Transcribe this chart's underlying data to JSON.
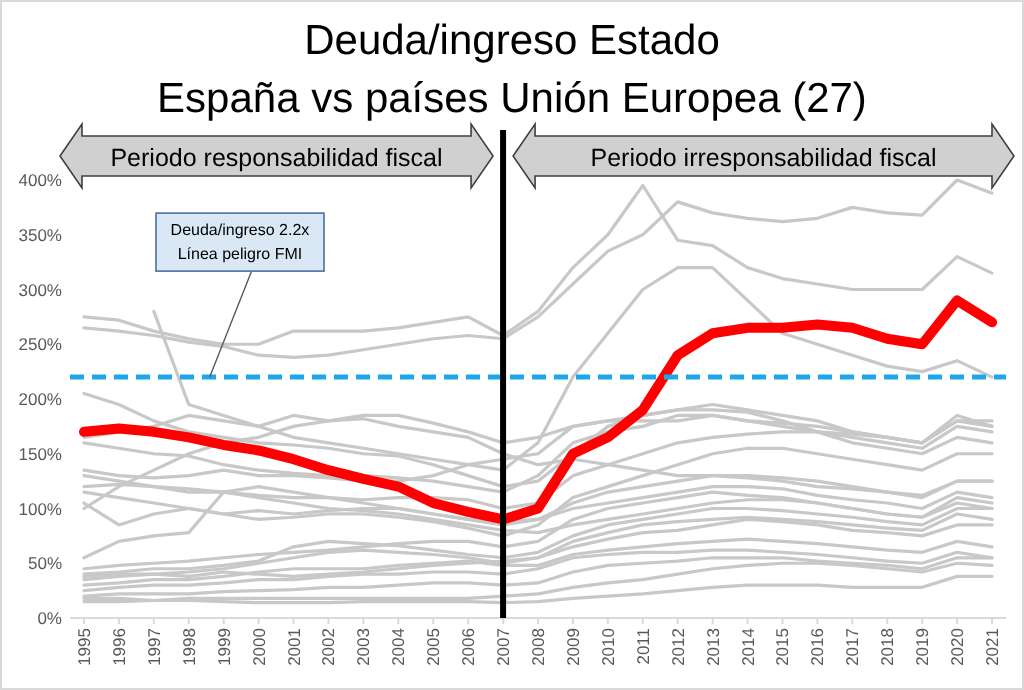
{
  "chart_data": {
    "type": "line",
    "title": "Deuda/ingreso Estado\nEspaña vs países Unión Europea (27)",
    "x": [
      1995,
      1996,
      1997,
      1998,
      1999,
      2000,
      2001,
      2002,
      2003,
      2004,
      2005,
      2006,
      2007,
      2008,
      2009,
      2010,
      2011,
      2012,
      2013,
      2014,
      2015,
      2016,
      2017,
      2018,
      2019,
      2020,
      2021
    ],
    "xlim": [
      1994.6,
      2021.4
    ],
    "xticks": [
      1995,
      1996,
      1997,
      1998,
      1999,
      2000,
      2001,
      2002,
      2003,
      2004,
      2005,
      2006,
      2007,
      2008,
      2009,
      2010,
      2011,
      2012,
      2013,
      2014,
      2015,
      2016,
      2017,
      2018,
      2019,
      2020,
      2021
    ],
    "ylim": [
      0,
      400
    ],
    "yticks": [
      {
        "value": 0,
        "label": "0%"
      },
      {
        "value": 50,
        "label": "50%"
      },
      {
        "value": 100,
        "label": "100%"
      },
      {
        "value": 150,
        "label": "150%"
      },
      {
        "value": 200,
        "label": "200%"
      },
      {
        "value": 250,
        "label": "250%"
      },
      {
        "value": 300,
        "label": "300%"
      },
      {
        "value": 350,
        "label": "350%"
      },
      {
        "value": 400,
        "label": "400%"
      }
    ],
    "marker": "none",
    "series": [
      {
        "color": "#c8c8c8",
        "values": [
          275,
          272,
          262,
          255,
          250,
          250,
          262,
          262,
          262,
          265,
          270,
          275,
          258,
          280,
          320,
          350,
          395,
          345,
          340,
          320,
          310,
          305,
          300,
          300,
          300,
          330,
          315
        ]
      },
      {
        "color": "#c8c8c8",
        "values": [
          265,
          262,
          258,
          252,
          248,
          240,
          238,
          240,
          245,
          250,
          255,
          258,
          255,
          275,
          305,
          335,
          350,
          380,
          370,
          365,
          362,
          365,
          375,
          370,
          368,
          400,
          388
        ]
      },
      {
        "color": "#c8c8c8",
        "values": [
          null,
          null,
          280,
          195,
          185,
          175,
          165,
          160,
          155,
          150,
          145,
          140,
          135,
          160,
          220,
          260,
          300,
          320,
          320,
          290,
          260,
          250,
          240,
          230,
          225,
          235,
          220
        ]
      },
      {
        "color": "#c8c8c8",
        "values": [
          205,
          195,
          180,
          170,
          165,
          160,
          158,
          155,
          150,
          148,
          140,
          130,
          120,
          125,
          150,
          175,
          185,
          190,
          195,
          190,
          185,
          180,
          170,
          165,
          160,
          185,
          175
        ]
      },
      {
        "color": "#c8c8c8",
        "values": [
          165,
          170,
          175,
          185,
          180,
          175,
          185,
          180,
          185,
          185,
          178,
          170,
          160,
          165,
          175,
          180,
          185,
          190,
          190,
          188,
          180,
          170,
          165,
          160,
          155,
          175,
          170
        ]
      },
      {
        "color": "#c8c8c8",
        "values": [
          160,
          155,
          150,
          148,
          140,
          135,
          132,
          130,
          130,
          128,
          125,
          120,
          115,
          130,
          160,
          170,
          175,
          185,
          185,
          180,
          175,
          170,
          160,
          155,
          150,
          165,
          160
        ]
      },
      {
        "color": "#c8c8c8",
        "values": [
          135,
          130,
          128,
          130,
          135,
          130,
          130,
          128,
          125,
          125,
          130,
          140,
          145,
          150,
          175,
          180,
          180,
          180,
          185,
          180,
          178,
          175,
          170,
          165,
          160,
          180,
          180
        ]
      },
      {
        "color": "#c8c8c8",
        "values": [
          120,
          122,
          120,
          118,
          115,
          112,
          110,
          110,
          108,
          110,
          110,
          108,
          100,
          105,
          130,
          140,
          150,
          160,
          165,
          168,
          170,
          170,
          168,
          165,
          160,
          180,
          175
        ]
      },
      {
        "color": "#c8c8c8",
        "values": [
          115,
          110,
          105,
          100,
          95,
          90,
          92,
          95,
          95,
          92,
          88,
          82,
          75,
          85,
          110,
          120,
          130,
          140,
          150,
          155,
          155,
          150,
          145,
          140,
          135,
          150,
          150
        ]
      },
      {
        "color": "#c8c8c8",
        "values": [
          105,
          85,
          95,
          100,
          95,
          98,
          95,
          98,
          100,
          100,
          95,
          90,
          85,
          90,
          105,
          115,
          120,
          125,
          130,
          130,
          128,
          125,
          120,
          115,
          110,
          125,
          125
        ]
      },
      {
        "color": "#c8c8c8",
        "values": [
          100,
          120,
          135,
          150,
          160,
          165,
          175,
          180,
          182,
          175,
          170,
          165,
          150,
          140,
          145,
          140,
          135,
          130,
          130,
          128,
          125,
          120,
          118,
          115,
          112,
          125,
          125
        ]
      },
      {
        "color": "#c8c8c8",
        "values": [
          55,
          70,
          75,
          78,
          115,
          120,
          115,
          110,
          105,
          100,
          95,
          90,
          88,
          90,
          100,
          105,
          110,
          115,
          120,
          120,
          118,
          112,
          108,
          105,
          100,
          115,
          110
        ]
      },
      {
        "color": "#c8c8c8",
        "values": [
          45,
          48,
          50,
          52,
          55,
          58,
          60,
          62,
          65,
          68,
          70,
          70,
          65,
          70,
          90,
          100,
          105,
          110,
          115,
          112,
          110,
          105,
          100,
          95,
          92,
          110,
          105
        ]
      },
      {
        "color": "#c8c8c8",
        "values": [
          40,
          42,
          45,
          45,
          48,
          52,
          65,
          70,
          68,
          66,
          62,
          58,
          55,
          60,
          75,
          85,
          90,
          95,
          100,
          100,
          98,
          95,
          92,
          88,
          85,
          100,
          100
        ]
      },
      {
        "color": "#c8c8c8",
        "values": [
          38,
          40,
          40,
          42,
          45,
          50,
          55,
          60,
          62,
          60,
          58,
          55,
          50,
          55,
          70,
          78,
          85,
          88,
          90,
          92,
          90,
          88,
          85,
          82,
          80,
          95,
          90
        ]
      },
      {
        "color": "#c8c8c8",
        "values": [
          35,
          38,
          40,
          38,
          42,
          40,
          38,
          40,
          42,
          45,
          48,
          50,
          52,
          55,
          65,
          72,
          78,
          80,
          85,
          90,
          88,
          85,
          80,
          78,
          75,
          85,
          85
        ]
      },
      {
        "color": "#c8c8c8",
        "values": [
          30,
          32,
          35,
          35,
          38,
          42,
          45,
          45,
          45,
          48,
          50,
          52,
          48,
          48,
          58,
          62,
          65,
          68,
          70,
          72,
          70,
          68,
          65,
          62,
          60,
          70,
          65
        ]
      },
      {
        "color": "#c8c8c8",
        "values": [
          25,
          28,
          30,
          30,
          32,
          35,
          35,
          38,
          40,
          40,
          42,
          42,
          40,
          45,
          55,
          58,
          60,
          60,
          62,
          62,
          60,
          58,
          55,
          52,
          50,
          60,
          55
        ]
      },
      {
        "color": "#c8c8c8",
        "values": [
          20,
          22,
          22,
          22,
          24,
          25,
          26,
          28,
          28,
          30,
          32,
          32,
          30,
          32,
          42,
          48,
          50,
          52,
          55,
          55,
          55,
          52,
          50,
          48,
          45,
          55,
          55
        ]
      },
      {
        "color": "#c8c8c8",
        "values": [
          18,
          18,
          16,
          16,
          15,
          14,
          14,
          14,
          15,
          15,
          15,
          15,
          14,
          15,
          18,
          20,
          22,
          25,
          28,
          30,
          30,
          30,
          28,
          28,
          28,
          38,
          38
        ]
      },
      {
        "color": "#c8c8c8",
        "values": [
          15,
          15,
          16,
          18,
          18,
          18,
          18,
          18,
          18,
          18,
          18,
          18,
          20,
          22,
          28,
          32,
          35,
          40,
          45,
          48,
          50,
          50,
          48,
          45,
          42,
          50,
          48
        ]
      },
      {
        "color": "#c8c8c8",
        "values": [
          130,
          125,
          120,
          115,
          115,
          110,
          105,
          100,
          98,
          95,
          90,
          85,
          80,
          78,
          85,
          90,
          95,
          100,
          105,
          108,
          108,
          105,
          100,
          95,
          92,
          105,
          100
        ]
      },
      {
        "color": "#ff0000",
        "values": [
          170,
          173,
          170,
          165,
          158,
          153,
          145,
          135,
          127,
          120,
          105,
          97,
          90,
          100,
          150,
          165,
          190,
          240,
          260,
          265,
          265,
          268,
          265,
          255,
          250,
          290,
          270
        ]
      }
    ],
    "ref_lines": [
      {
        "axis": "y",
        "value": 220,
        "color": "#1ea7e8",
        "line_style": "dashed",
        "label": "Deuda/ingreso 2.2x\nLínea peligro FMI"
      },
      {
        "axis": "x",
        "value": 2007,
        "color": "#000000",
        "line_style": "solid",
        "label": null
      }
    ],
    "annotations": [
      "Periodo responsabilidad fiscal",
      "Periodo irresponsabilidad fiscal"
    ]
  }
}
